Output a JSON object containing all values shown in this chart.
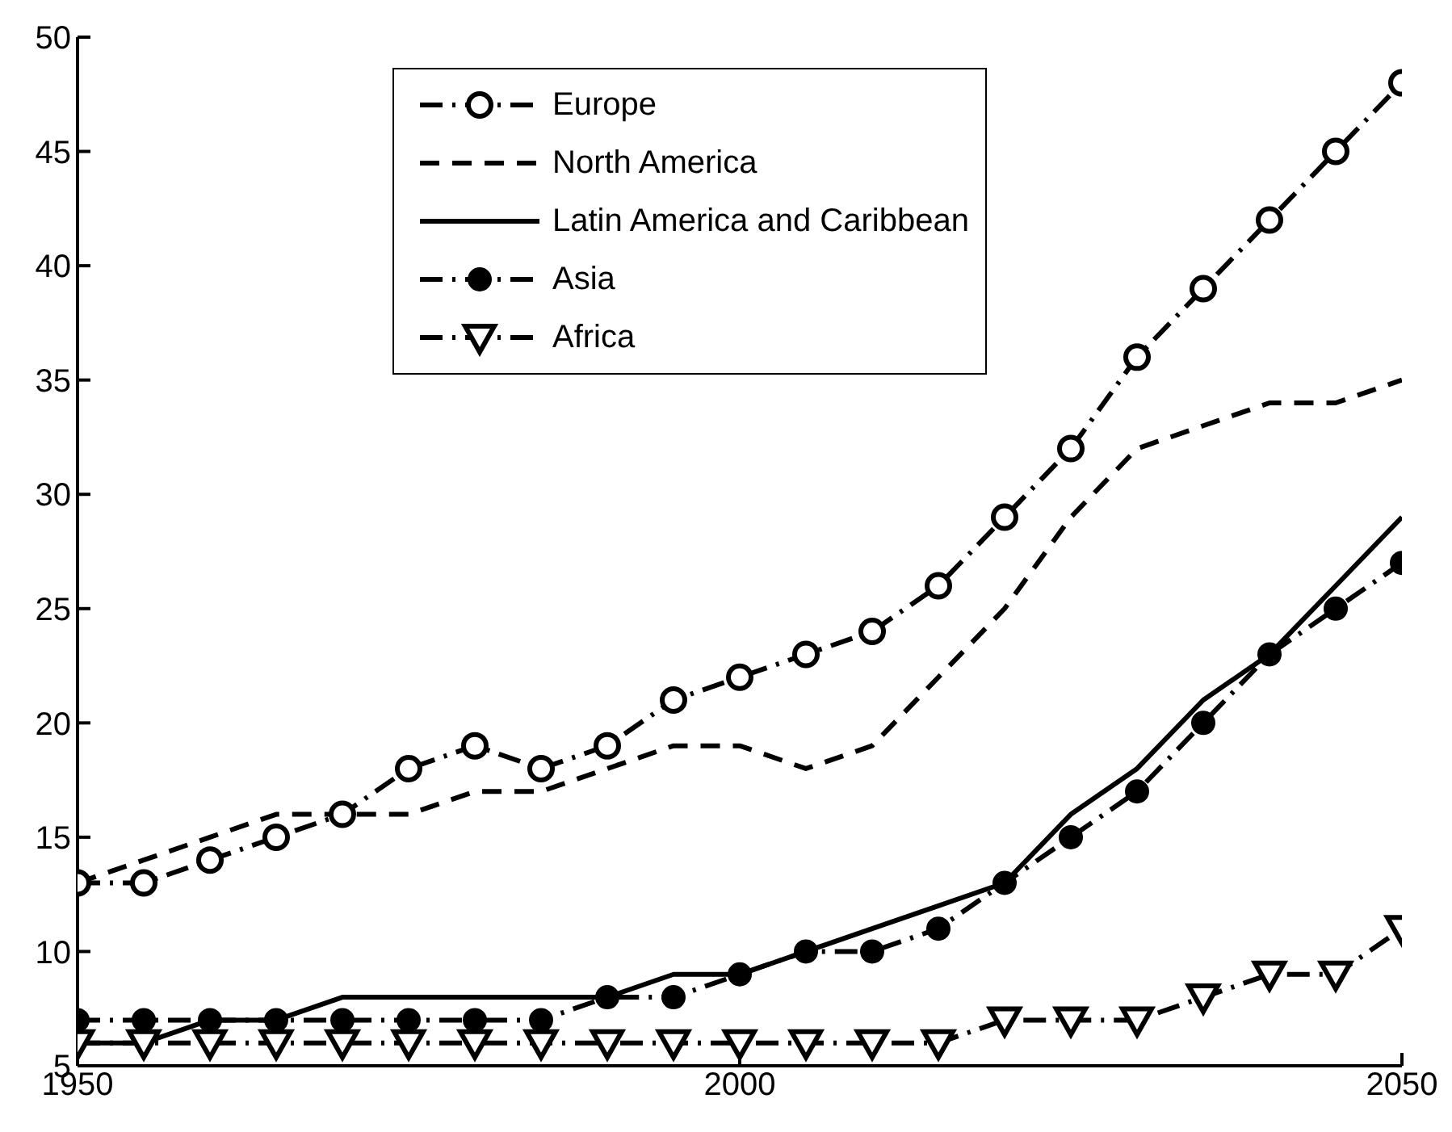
{
  "chart_data": {
    "type": "line",
    "x": [
      1950,
      1955,
      1960,
      1965,
      1970,
      1975,
      1980,
      1985,
      1990,
      1995,
      2000,
      2005,
      2010,
      2015,
      2020,
      2025,
      2030,
      2035,
      2040,
      2045,
      2050
    ],
    "series": [
      {
        "name": "Europe",
        "color": "#000000",
        "marker": "circle",
        "line_style": "dashdot",
        "values": [
          13,
          13,
          14,
          15,
          16,
          18,
          19,
          18,
          19,
          21,
          22,
          23,
          24,
          26,
          29,
          32,
          36,
          39,
          42,
          45,
          48
        ]
      },
      {
        "name": "North America",
        "color": "#000000",
        "marker": "none",
        "line_style": "dashed",
        "values": [
          13,
          14,
          15,
          16,
          16,
          16,
          17,
          17,
          18,
          19,
          19,
          18,
          19,
          22,
          25,
          29,
          32,
          33,
          34,
          34,
          35
        ]
      },
      {
        "name": "Latin America and Caribbean",
        "color": "#000000",
        "marker": "none",
        "line_style": "solid",
        "values": [
          6,
          6,
          7,
          7,
          8,
          8,
          8,
          8,
          8,
          9,
          9,
          10,
          11,
          12,
          13,
          16,
          18,
          21,
          23,
          26,
          29
        ]
      },
      {
        "name": "Asia",
        "color": "#000000",
        "marker": "filled-circle",
        "line_style": "dashdot",
        "values": [
          7,
          7,
          7,
          7,
          7,
          7,
          7,
          7,
          8,
          8,
          9,
          10,
          10,
          11,
          13,
          15,
          17,
          20,
          23,
          25,
          27
        ]
      },
      {
        "name": "Africa",
        "color": "#000000",
        "marker": "triangle",
        "line_style": "dashdot",
        "values": [
          6,
          6,
          6,
          6,
          6,
          6,
          6,
          6,
          6,
          6,
          6,
          6,
          6,
          6,
          7,
          7,
          7,
          8,
          9,
          9,
          11
        ]
      }
    ],
    "xlim": [
      1950,
      2050
    ],
    "xticks": [
      1950,
      2000,
      2050
    ],
    "ylim": [
      5,
      50
    ],
    "yticks": [
      5,
      10,
      15,
      20,
      25,
      30,
      35,
      40,
      45,
      50
    ],
    "grid": false,
    "legend": "top"
  }
}
